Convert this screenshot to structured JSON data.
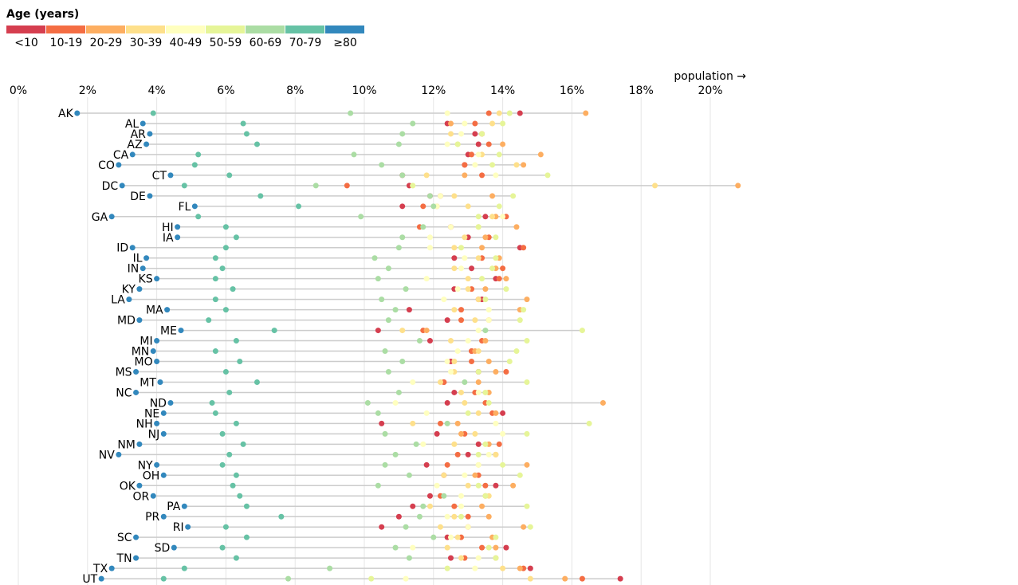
{
  "chart_data": {
    "type": "scatter",
    "subtype": "dot-plot",
    "title": "",
    "xlabel": "population →",
    "ylabel": "",
    "xlim": [
      0,
      21
    ],
    "x_ticks": [
      0,
      2,
      4,
      6,
      8,
      10,
      12,
      14,
      16,
      18,
      20
    ],
    "x_tick_labels": [
      "0%",
      "2%",
      "4%",
      "6%",
      "8%",
      "10%",
      "12%",
      "14%",
      "16%",
      "18%",
      "20%"
    ],
    "legend": {
      "title": "Age (years)",
      "placement": "top-left",
      "items": [
        {
          "label": "<10",
          "color": "#d53e4f"
        },
        {
          "label": "10-19",
          "color": "#f46d43"
        },
        {
          "label": "20-29",
          "color": "#fdae61"
        },
        {
          "label": "30-39",
          "color": "#fee08b"
        },
        {
          "label": "40-49",
          "color": "#ffffbf"
        },
        {
          "label": "50-59",
          "color": "#e6f598"
        },
        {
          "label": "60-69",
          "color": "#abdda4"
        },
        {
          "label": "70-79",
          "color": "#66c2a5"
        },
        {
          "label": "≥80",
          "color": "#3288bd"
        }
      ]
    },
    "series_order": [
      "<10",
      "10-19",
      "20-29",
      "30-39",
      "40-49",
      "50-59",
      "60-69",
      "70-79",
      "≥80"
    ],
    "states": [
      {
        "state": "AK",
        "values": [
          14.5,
          13.6,
          16.4,
          13.9,
          12.4,
          14.2,
          9.6,
          3.9,
          1.7
        ]
      },
      {
        "state": "AL",
        "values": [
          12.4,
          13.2,
          12.5,
          13.7,
          12.9,
          14.0,
          11.4,
          6.5,
          3.6
        ]
      },
      {
        "state": "AR",
        "values": [
          13.2,
          13.4,
          13.4,
          12.5,
          12.8,
          13.4,
          11.1,
          6.6,
          3.8
        ]
      },
      {
        "state": "AZ",
        "values": [
          13.3,
          13.6,
          14.0,
          12.7,
          12.4,
          12.7,
          11.0,
          6.9,
          3.7
        ]
      },
      {
        "state": "CA",
        "values": [
          13.0,
          13.1,
          15.1,
          13.4,
          13.3,
          13.9,
          9.7,
          5.2,
          3.3
        ]
      },
      {
        "state": "CO",
        "values": [
          12.9,
          12.9,
          14.6,
          14.4,
          13.2,
          13.7,
          10.5,
          5.1,
          2.9
        ]
      },
      {
        "state": "CT",
        "values": [
          11.1,
          13.4,
          12.9,
          11.8,
          13.8,
          15.3,
          11.1,
          6.1,
          4.4
        ]
      },
      {
        "state": "DC",
        "values": [
          11.3,
          9.5,
          20.8,
          18.4,
          11.4,
          11.4,
          8.6,
          4.8,
          3.0
        ]
      },
      {
        "state": "DE",
        "values": [
          11.9,
          12.2,
          13.7,
          12.6,
          12.2,
          14.3,
          11.9,
          7.0,
          3.8
        ]
      },
      {
        "state": "FL",
        "values": [
          11.1,
          11.7,
          12.1,
          13.0,
          12.1,
          13.9,
          12.0,
          8.1,
          5.1
        ]
      },
      {
        "state": "GA",
        "values": [
          13.5,
          14.1,
          13.8,
          13.7,
          14.0,
          13.3,
          9.9,
          5.2,
          2.7
        ]
      },
      {
        "state": "HI",
        "values": [
          12.5,
          11.6,
          14.4,
          13.3,
          12.5,
          13.3,
          11.7,
          6.0,
          4.6
        ]
      },
      {
        "state": "IA",
        "values": [
          13.0,
          13.6,
          13.5,
          12.9,
          11.9,
          13.8,
          11.1,
          6.3,
          4.6
        ]
      },
      {
        "state": "ID",
        "values": [
          14.5,
          14.6,
          13.4,
          12.6,
          11.9,
          12.8,
          11.0,
          6.0,
          3.3
        ]
      },
      {
        "state": "IL",
        "values": [
          12.6,
          13.4,
          13.9,
          13.3,
          12.9,
          13.8,
          10.3,
          5.7,
          3.7
        ]
      },
      {
        "state": "IN",
        "values": [
          13.1,
          14.0,
          13.8,
          12.6,
          12.8,
          13.7,
          10.7,
          5.9,
          3.6
        ]
      },
      {
        "state": "KS",
        "values": [
          13.8,
          13.9,
          14.1,
          13.0,
          11.8,
          13.4,
          10.4,
          5.7,
          4.0
        ]
      },
      {
        "state": "KY",
        "values": [
          12.6,
          13.1,
          13.5,
          13.0,
          12.7,
          14.1,
          11.2,
          6.2,
          3.5
        ]
      },
      {
        "state": "LA",
        "values": [
          13.4,
          13.3,
          14.7,
          13.3,
          12.3,
          13.5,
          10.5,
          5.7,
          3.2
        ]
      },
      {
        "state": "MA",
        "values": [
          11.3,
          12.8,
          14.5,
          12.6,
          13.6,
          14.6,
          10.9,
          6.0,
          4.3
        ]
      },
      {
        "state": "MD",
        "values": [
          12.4,
          12.8,
          13.6,
          13.2,
          13.6,
          14.5,
          10.7,
          5.5,
          3.5
        ]
      },
      {
        "state": "ME",
        "values": [
          10.4,
          11.7,
          11.8,
          11.1,
          13.3,
          16.3,
          13.5,
          7.4,
          4.7
        ]
      },
      {
        "state": "MI",
        "values": [
          11.9,
          13.4,
          13.5,
          12.5,
          13.0,
          14.7,
          11.6,
          6.3,
          4.0
        ]
      },
      {
        "state": "MN",
        "values": [
          13.1,
          13.1,
          13.2,
          13.3,
          12.7,
          14.4,
          10.6,
          5.7,
          3.9
        ]
      },
      {
        "state": "MO",
        "values": [
          12.5,
          13.1,
          13.6,
          12.6,
          12.4,
          14.2,
          11.1,
          6.4,
          4.0
        ]
      },
      {
        "state": "MS",
        "values": [
          13.3,
          14.1,
          13.8,
          12.6,
          12.5,
          13.3,
          10.7,
          6.0,
          3.4
        ]
      },
      {
        "state": "MT",
        "values": [
          12.3,
          12.3,
          13.3,
          12.2,
          11.4,
          14.7,
          12.9,
          6.9,
          4.1
        ]
      },
      {
        "state": "NC",
        "values": [
          12.6,
          13.2,
          13.6,
          12.8,
          13.3,
          13.5,
          11.0,
          6.1,
          3.4
        ]
      },
      {
        "state": "ND",
        "values": [
          12.4,
          13.5,
          16.9,
          12.9,
          10.9,
          13.6,
          10.1,
          5.6,
          4.4
        ]
      },
      {
        "state": "NE",
        "values": [
          14.0,
          13.7,
          13.8,
          13.3,
          11.8,
          13.0,
          10.4,
          5.7,
          4.2
        ]
      },
      {
        "state": "NH",
        "values": [
          10.5,
          12.2,
          12.7,
          11.4,
          13.8,
          16.5,
          12.4,
          6.3,
          4.0
        ]
      },
      {
        "state": "NJ",
        "values": [
          12.1,
          12.9,
          12.8,
          13.2,
          14.0,
          14.7,
          10.6,
          5.9,
          4.2
        ]
      },
      {
        "state": "NM",
        "values": [
          13.3,
          13.9,
          13.6,
          12.6,
          11.7,
          13.5,
          11.5,
          6.5,
          3.5
        ]
      },
      {
        "state": "NV",
        "values": [
          13.0,
          12.7,
          13.8,
          13.8,
          13.6,
          13.3,
          10.9,
          6.1,
          2.9
        ]
      },
      {
        "state": "NY",
        "values": [
          11.8,
          12.4,
          14.7,
          13.3,
          13.3,
          14.0,
          10.6,
          5.9,
          4.0
        ]
      },
      {
        "state": "OH",
        "values": [
          12.3,
          13.3,
          13.2,
          12.3,
          12.9,
          14.5,
          11.3,
          6.3,
          4.2
        ]
      },
      {
        "state": "OK",
        "values": [
          13.8,
          13.5,
          14.3,
          13.0,
          12.1,
          13.3,
          10.4,
          6.2,
          3.5
        ]
      },
      {
        "state": "OR",
        "values": [
          11.9,
          12.2,
          13.5,
          13.6,
          12.8,
          13.5,
          12.3,
          6.4,
          3.9
        ]
      },
      {
        "state": "PA",
        "values": [
          11.4,
          12.6,
          13.4,
          11.9,
          12.8,
          14.7,
          11.7,
          6.6,
          4.8
        ]
      },
      {
        "state": "PR",
        "values": [
          11.0,
          13.0,
          13.6,
          12.6,
          12.4,
          12.8,
          11.6,
          7.6,
          4.2
        ]
      },
      {
        "state": "RI",
        "values": [
          10.5,
          13.0,
          14.6,
          12.2,
          13.0,
          14.8,
          11.2,
          6.0,
          4.9
        ]
      },
      {
        "state": "SC",
        "values": [
          12.4,
          12.8,
          13.7,
          12.7,
          12.5,
          13.8,
          12.0,
          6.6,
          3.4
        ]
      },
      {
        "state": "SD",
        "values": [
          14.1,
          13.4,
          13.8,
          12.4,
          11.4,
          13.6,
          10.9,
          5.9,
          4.5
        ]
      },
      {
        "state": "TN",
        "values": [
          12.5,
          12.9,
          13.8,
          12.8,
          13.3,
          13.8,
          11.3,
          6.3,
          3.4
        ]
      },
      {
        "state": "TX",
        "values": [
          14.8,
          14.6,
          14.5,
          14.0,
          13.2,
          12.4,
          9.0,
          4.8,
          2.7
        ]
      },
      {
        "state": "UT",
        "values": [
          17.4,
          16.3,
          15.8,
          14.8,
          11.2,
          10.2,
          7.8,
          4.2,
          2.4
        ]
      }
    ]
  }
}
